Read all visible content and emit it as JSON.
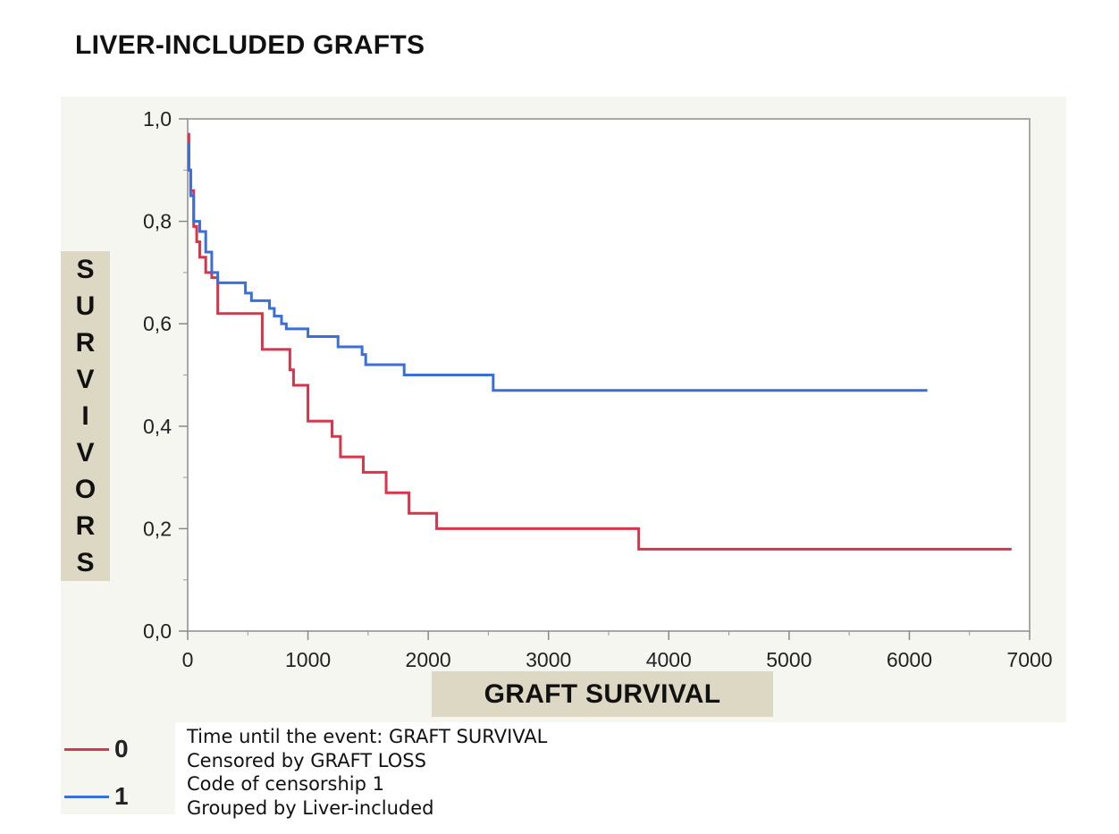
{
  "title": "LIVER-INCLUDED GRAFTS",
  "notes": [
    "Time until the event: GRAFT SURVIVAL",
    "Censored by GRAFT LOSS",
    "Code of censorship 1",
    "Grouped by Liver-included"
  ],
  "legend": [
    {
      "label": "0",
      "color": "#d7354a"
    },
    {
      "label": "1",
      "color": "#3b6fd6"
    }
  ],
  "chart_data": {
    "type": "line",
    "step": true,
    "xlabel": "GRAFT SURVIVAL",
    "ylabel": "SURVIVORS",
    "xlim": [
      0,
      7000
    ],
    "ylim": [
      0,
      1.0
    ],
    "xticks": [
      "0",
      "1000",
      "2000",
      "3000",
      "4000",
      "5000",
      "6000",
      "7000"
    ],
    "yticks": [
      "0,0",
      "0,2",
      "0,4",
      "0,6",
      "0,8",
      "1,0"
    ],
    "grid": false,
    "series": [
      {
        "name": "0",
        "color": "#d7354a",
        "x": [
          0,
          10,
          25,
          50,
          75,
          100,
          150,
          200,
          250,
          600,
          620,
          850,
          880,
          1000,
          1200,
          1270,
          1460,
          1650,
          1840,
          2070,
          3750,
          6850
        ],
        "y": [
          0.97,
          0.9,
          0.86,
          0.79,
          0.76,
          0.73,
          0.7,
          0.69,
          0.62,
          0.62,
          0.55,
          0.51,
          0.48,
          0.41,
          0.38,
          0.34,
          0.31,
          0.27,
          0.23,
          0.2,
          0.16,
          0.16
        ]
      },
      {
        "name": "1",
        "color": "#3b6fd6",
        "x": [
          0,
          10,
          25,
          50,
          100,
          150,
          200,
          250,
          480,
          530,
          680,
          720,
          780,
          820,
          860,
          1000,
          1250,
          1450,
          1480,
          1800,
          2540,
          6150
        ],
        "y": [
          0.95,
          0.9,
          0.85,
          0.8,
          0.78,
          0.74,
          0.7,
          0.68,
          0.66,
          0.645,
          0.63,
          0.615,
          0.6,
          0.59,
          0.59,
          0.575,
          0.555,
          0.54,
          0.52,
          0.5,
          0.47,
          0.47
        ]
      }
    ]
  }
}
